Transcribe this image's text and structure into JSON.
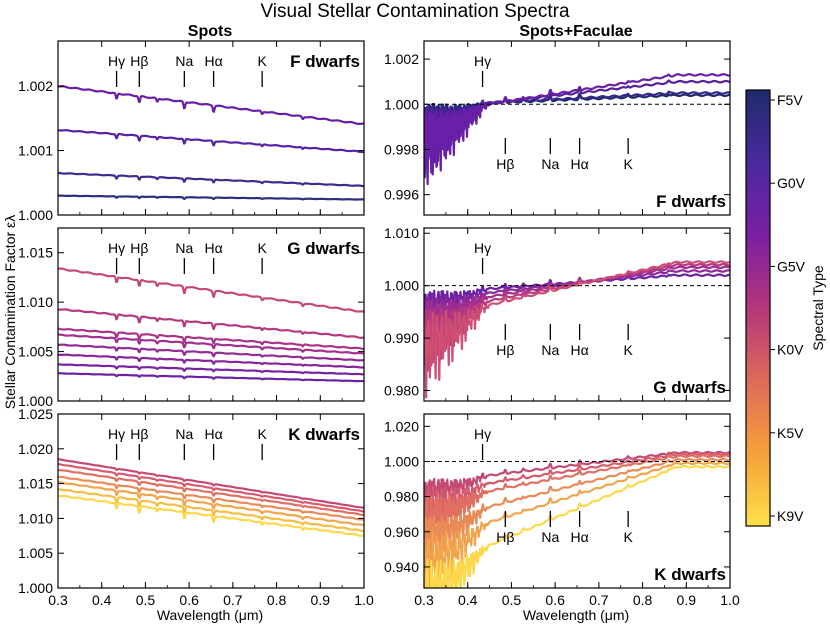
{
  "title": "Visual Stellar Contamination Spectra",
  "column_titles": [
    "Spots",
    "Spots+Faculae"
  ],
  "ylabel": "Stellar Contamination Factor ελ",
  "xlabel": "Wavelength (μm)",
  "xlim": [
    0.3,
    1.0
  ],
  "x_ticks": [
    "0.3",
    "0.4",
    "0.5",
    "0.6",
    "0.7",
    "0.8",
    "0.9",
    "1.0"
  ],
  "colorbar": {
    "label": "Spectral Type",
    "ticks": [
      "F5V",
      "G0V",
      "G5V",
      "K0V",
      "K5V",
      "K9V"
    ],
    "colors": [
      "#1f2a6b",
      "#4a2a9e",
      "#7a1fa2",
      "#b5367a",
      "#de6a5a",
      "#f5a13a",
      "#fde04a"
    ]
  },
  "chart_data": [
    {
      "type": "line",
      "panel": "spots-f",
      "group_label": "F dwarfs",
      "group_color": "#4b1fa8",
      "ylim": [
        1.0,
        1.0027
      ],
      "yticks": [
        1.0,
        1.001,
        1.002
      ],
      "ytick_labels": [
        "1.000",
        "1.001",
        "1.002"
      ],
      "series": [
        {
          "name": "F5V spot model",
          "start": 1.0003,
          "end": 1.00024,
          "color": "#2b2f7d"
        },
        {
          "name": "F7V spot model",
          "start": 1.00065,
          "end": 1.00045,
          "color": "#3d2c8f"
        },
        {
          "name": "F9V spot model",
          "start": 1.00132,
          "end": 1.00098,
          "color": "#5423a6"
        },
        {
          "name": "G0V spot model",
          "start": 1.002,
          "end": 1.00141,
          "color": "#6a1fa8"
        }
      ],
      "line_labels": [
        {
          "text": "Hγ",
          "x": 0.434,
          "side": "top"
        },
        {
          "text": "Hβ",
          "x": 0.486,
          "side": "top"
        },
        {
          "text": "Na",
          "x": 0.589,
          "side": "top"
        },
        {
          "text": "Hα",
          "x": 0.656,
          "side": "top"
        },
        {
          "text": "K",
          "x": 0.767,
          "side": "top"
        }
      ]
    },
    {
      "type": "line",
      "panel": "faculae-f",
      "group_label": "F dwarfs",
      "group_color": "#1f2a6b",
      "ylim": [
        0.9951,
        1.0028
      ],
      "yticks": [
        0.996,
        0.998,
        1.0,
        1.002
      ],
      "ytick_labels": [
        "0.996",
        "0.998",
        "1.000",
        "1.002"
      ],
      "reference_line": 1.0,
      "series": [
        {
          "name": "F5V spot+facula model",
          "start": 1.0,
          "end": 1.0004,
          "color": "#1f2a6b"
        },
        {
          "name": "F7V spot+facula model",
          "start": 1.0,
          "end": 1.0005,
          "color": "#34288a"
        },
        {
          "name": "F9V spot+facula model",
          "start": 0.9999,
          "end": 1.001,
          "color": "#55209f"
        },
        {
          "name": "G0V spot+facula model",
          "start": 0.9998,
          "end": 1.0013,
          "color": "#6a1fa8"
        }
      ],
      "line_labels": [
        {
          "text": "Hγ",
          "x": 0.434,
          "side": "top"
        },
        {
          "text": "Hβ",
          "x": 0.486,
          "side": "bottom"
        },
        {
          "text": "Na",
          "x": 0.589,
          "side": "bottom"
        },
        {
          "text": "Hα",
          "x": 0.656,
          "side": "bottom"
        },
        {
          "text": "K",
          "x": 0.767,
          "side": "bottom"
        }
      ]
    },
    {
      "type": "line",
      "panel": "spots-g",
      "group_label": "G dwarfs",
      "group_color": "#7a1fa2",
      "ylim": [
        1.0,
        1.0175
      ],
      "yticks": [
        1.0,
        1.005,
        1.01,
        1.015
      ],
      "ytick_labels": [
        "1.000",
        "1.005",
        "1.010",
        "1.015"
      ],
      "series": [
        {
          "name": "G0V spot model",
          "start": 1.0028,
          "end": 1.002,
          "color": "#6c22a6"
        },
        {
          "name": "G1V spot model",
          "start": 1.0037,
          "end": 1.0027,
          "color": "#7a22a2"
        },
        {
          "name": "G2V spot model",
          "start": 1.0047,
          "end": 1.0034,
          "color": "#87259d"
        },
        {
          "name": "G3V spot model",
          "start": 1.0057,
          "end": 1.0041,
          "color": "#942a97"
        },
        {
          "name": "G5V spot model",
          "start": 1.0067,
          "end": 1.0048,
          "color": "#a02f8f"
        },
        {
          "name": "G6V spot model",
          "start": 1.0073,
          "end": 1.0053,
          "color": "#aa3388"
        },
        {
          "name": "G8V spot model",
          "start": 1.0093,
          "end": 1.0064,
          "color": "#b6387f"
        },
        {
          "name": "K0V spot model",
          "start": 1.0134,
          "end": 1.009,
          "color": "#c44a75"
        }
      ],
      "line_labels": [
        {
          "text": "Hγ",
          "x": 0.434,
          "side": "top"
        },
        {
          "text": "Hβ",
          "x": 0.486,
          "side": "top"
        },
        {
          "text": "Na",
          "x": 0.589,
          "side": "top"
        },
        {
          "text": "Hα",
          "x": 0.656,
          "side": "top"
        },
        {
          "text": "K",
          "x": 0.767,
          "side": "top"
        }
      ]
    },
    {
      "type": "line",
      "panel": "faculae-g",
      "group_label": "G dwarfs",
      "group_color": "#7a1fa2",
      "ylim": [
        0.978,
        1.011
      ],
      "yticks": [
        0.98,
        0.99,
        1.0,
        1.01
      ],
      "ytick_labels": [
        "0.980",
        "0.990",
        "1.000",
        "1.010"
      ],
      "reference_line": 1.0,
      "series": [
        {
          "name": "G0V spot+facula model",
          "start": 0.999,
          "end": 1.002,
          "color": "#6c22a6"
        },
        {
          "name": "G3V spot+facula model",
          "start": 0.998,
          "end": 1.0028,
          "color": "#8d2a9a"
        },
        {
          "name": "G5V spot+facula model",
          "start": 0.997,
          "end": 1.0035,
          "color": "#a02f8f"
        },
        {
          "name": "G8V spot+facula model",
          "start": 0.996,
          "end": 1.004,
          "color": "#b6387f"
        },
        {
          "name": "K0V spot+facula model",
          "start": 0.995,
          "end": 1.0045,
          "color": "#cf4f72"
        }
      ],
      "line_labels": [
        {
          "text": "Hγ",
          "x": 0.434,
          "side": "top"
        },
        {
          "text": "Hβ",
          "x": 0.486,
          "side": "bottom"
        },
        {
          "text": "Na",
          "x": 0.589,
          "side": "bottom"
        },
        {
          "text": "Hα",
          "x": 0.656,
          "side": "bottom"
        },
        {
          "text": "K",
          "x": 0.767,
          "side": "bottom"
        }
      ]
    },
    {
      "type": "line",
      "panel": "spots-k",
      "group_label": "K dwarfs",
      "group_color": "#d95b6e",
      "ylim": [
        1.0,
        1.025
      ],
      "yticks": [
        1.0,
        1.005,
        1.01,
        1.015,
        1.02,
        1.025
      ],
      "ytick_labels": [
        "1.000",
        "1.005",
        "1.010",
        "1.015",
        "1.020",
        "1.025"
      ],
      "series": [
        {
          "name": "K0V spot model",
          "start": 1.0185,
          "end": 1.0115,
          "color": "#c44a75"
        },
        {
          "name": "K2V spot model",
          "start": 1.0178,
          "end": 1.011,
          "color": "#d65b6c"
        },
        {
          "name": "K3V spot model",
          "start": 1.017,
          "end": 1.0105,
          "color": "#e06f62"
        },
        {
          "name": "K5V spot model",
          "start": 1.016,
          "end": 1.0098,
          "color": "#ea8a57"
        },
        {
          "name": "K7V spot model",
          "start": 1.0152,
          "end": 1.009,
          "color": "#f2a44a"
        },
        {
          "name": "K8V spot model",
          "start": 1.0142,
          "end": 1.0082,
          "color": "#f7bd42"
        },
        {
          "name": "K9V spot model",
          "start": 1.0133,
          "end": 1.0075,
          "color": "#fcd84a"
        }
      ],
      "line_labels": [
        {
          "text": "Hγ",
          "x": 0.434,
          "side": "top"
        },
        {
          "text": "Hβ",
          "x": 0.486,
          "side": "top"
        },
        {
          "text": "Na",
          "x": 0.589,
          "side": "top"
        },
        {
          "text": "Hα",
          "x": 0.656,
          "side": "top"
        },
        {
          "text": "K",
          "x": 0.767,
          "side": "top"
        }
      ]
    },
    {
      "type": "line",
      "panel": "faculae-k",
      "group_label": "K dwarfs",
      "group_color": "#d95b6e",
      "ylim": [
        0.928,
        1.027
      ],
      "yticks": [
        0.94,
        0.96,
        0.98,
        1.0,
        1.02
      ],
      "ytick_labels": [
        "0.940",
        "0.960",
        "0.980",
        "1.000",
        "1.020"
      ],
      "reference_line": 1.0,
      "series": [
        {
          "name": "K0V spot+facula model",
          "start": 0.99,
          "end": 1.005,
          "color": "#c44a75"
        },
        {
          "name": "K2V spot+facula model",
          "start": 0.985,
          "end": 1.004,
          "color": "#d65b6c"
        },
        {
          "name": "K3V spot+facula model",
          "start": 0.98,
          "end": 1.003,
          "color": "#e06f62"
        },
        {
          "name": "K5V spot+facula model",
          "start": 0.97,
          "end": 1.001,
          "color": "#ea8a57"
        },
        {
          "name": "K7V spot+facula model",
          "start": 0.96,
          "end": 0.999,
          "color": "#f2a44a"
        },
        {
          "name": "K9V spot+facula model",
          "start": 0.945,
          "end": 0.997,
          "color": "#fcd84a"
        }
      ],
      "line_labels": [
        {
          "text": "Hγ",
          "x": 0.434,
          "side": "top"
        },
        {
          "text": "Hβ",
          "x": 0.486,
          "side": "bottom"
        },
        {
          "text": "Na",
          "x": 0.589,
          "side": "bottom"
        },
        {
          "text": "Hα",
          "x": 0.656,
          "side": "bottom"
        },
        {
          "text": "K",
          "x": 0.767,
          "side": "bottom"
        }
      ]
    }
  ]
}
